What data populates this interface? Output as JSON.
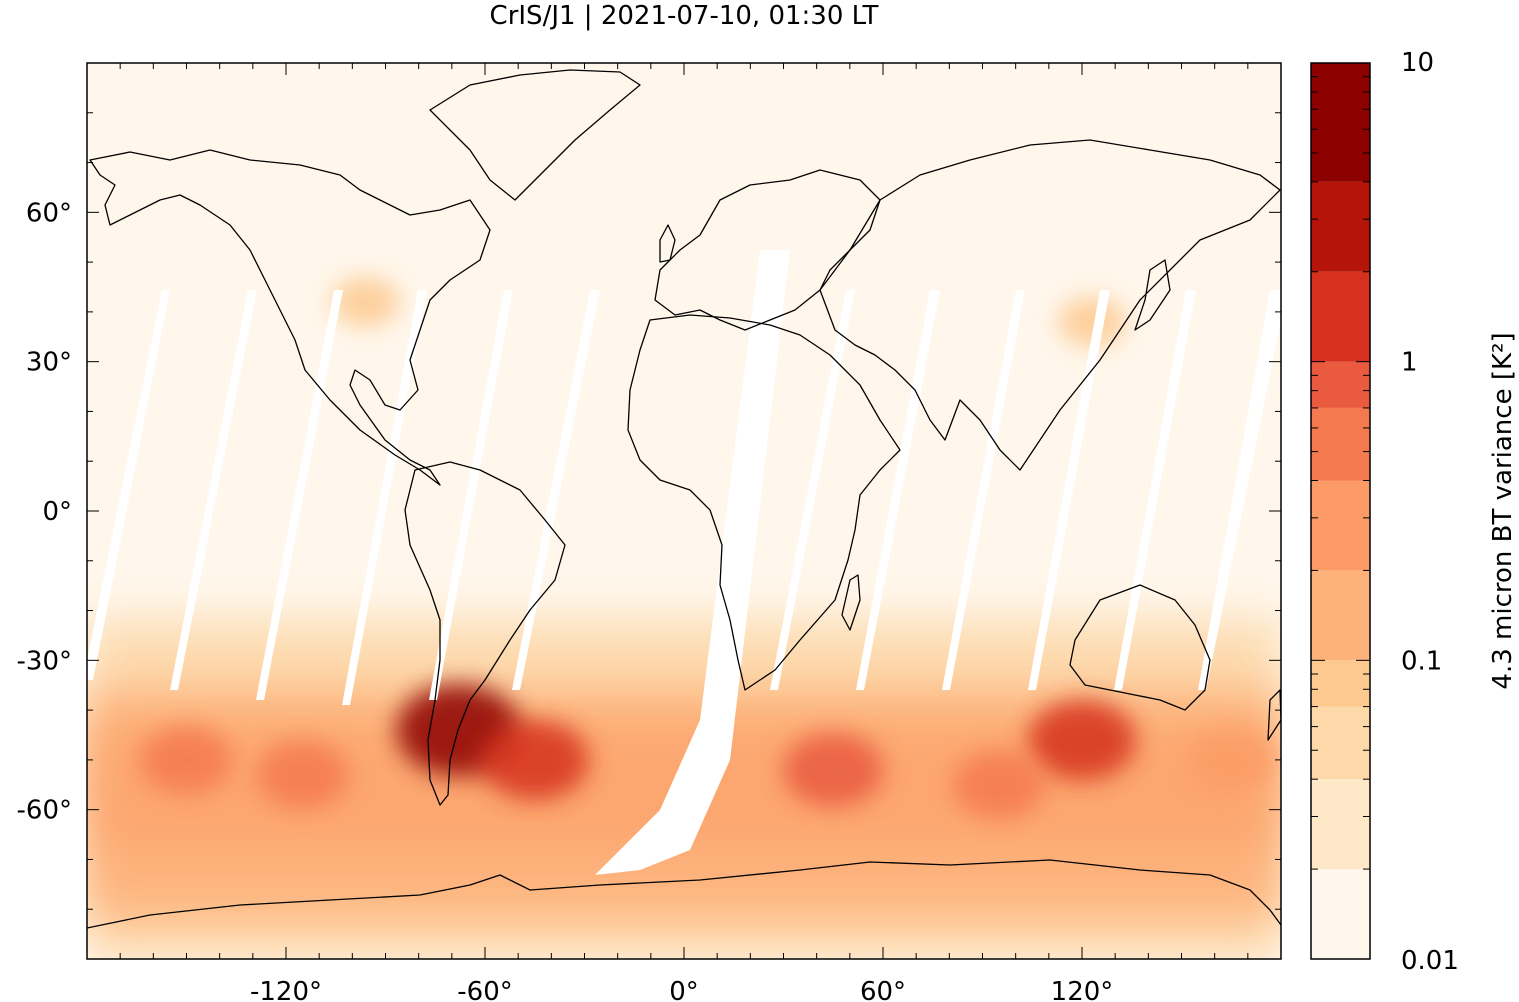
{
  "title": "CrIS/J1 | 2021-07-10, 01:30 LT",
  "map": {
    "projection": "plate-carree",
    "lon_range": [
      -180,
      180
    ],
    "lat_range": [
      -90,
      90
    ],
    "x_ticks": [
      {
        "value": -120,
        "label": "-120°"
      },
      {
        "value": -60,
        "label": "-60°"
      },
      {
        "value": 0,
        "label": "0°"
      },
      {
        "value": 60,
        "label": "60°"
      },
      {
        "value": 120,
        "label": "120°"
      }
    ],
    "y_ticks": [
      {
        "value": 60,
        "label": "60°"
      },
      {
        "value": 30,
        "label": "30°"
      },
      {
        "value": 0,
        "label": "0°"
      },
      {
        "value": -30,
        "label": "-30°"
      },
      {
        "value": -60,
        "label": "-60°"
      }
    ],
    "background_color": "#fff7ec",
    "coastline_color": "#000000"
  },
  "colorbar": {
    "label": "4.3 micron BT variance [K²]",
    "scale": "log",
    "range": [
      0.01,
      10
    ],
    "tick_labels": [
      {
        "value": 10,
        "label": "10"
      },
      {
        "value": 1,
        "label": "1"
      },
      {
        "value": 0.1,
        "label": "0.1"
      },
      {
        "value": 0.01,
        "label": "0.01"
      }
    ],
    "levels": [
      0.01,
      0.02,
      0.04,
      0.07,
      0.1,
      0.2,
      0.4,
      0.7,
      1,
      2,
      4,
      10
    ],
    "colors": [
      "#fff7ec",
      "#fee8c8",
      "#fdd8a9",
      "#fdc98f",
      "#fdb27c",
      "#fc9b65",
      "#f4794f",
      "#e95a3f",
      "#d6301e",
      "#b51508",
      "#8c0000"
    ]
  },
  "hotspots": [
    {
      "lon": -96,
      "lat": 42,
      "level": 3
    },
    {
      "lon": 123,
      "lat": 38,
      "level": 3
    },
    {
      "lon": -68,
      "lat": -44,
      "level": 10
    },
    {
      "lon": -45,
      "lat": -50,
      "level": 8
    },
    {
      "lon": -150,
      "lat": -50,
      "level": 6
    },
    {
      "lon": -115,
      "lat": -53,
      "level": 6
    },
    {
      "lon": 45,
      "lat": -52,
      "level": 7
    },
    {
      "lon": 120,
      "lat": -46,
      "level": 8
    },
    {
      "lon": 95,
      "lat": -55,
      "level": 6
    },
    {
      "lon": 165,
      "lat": -50,
      "level": 5
    }
  ]
}
